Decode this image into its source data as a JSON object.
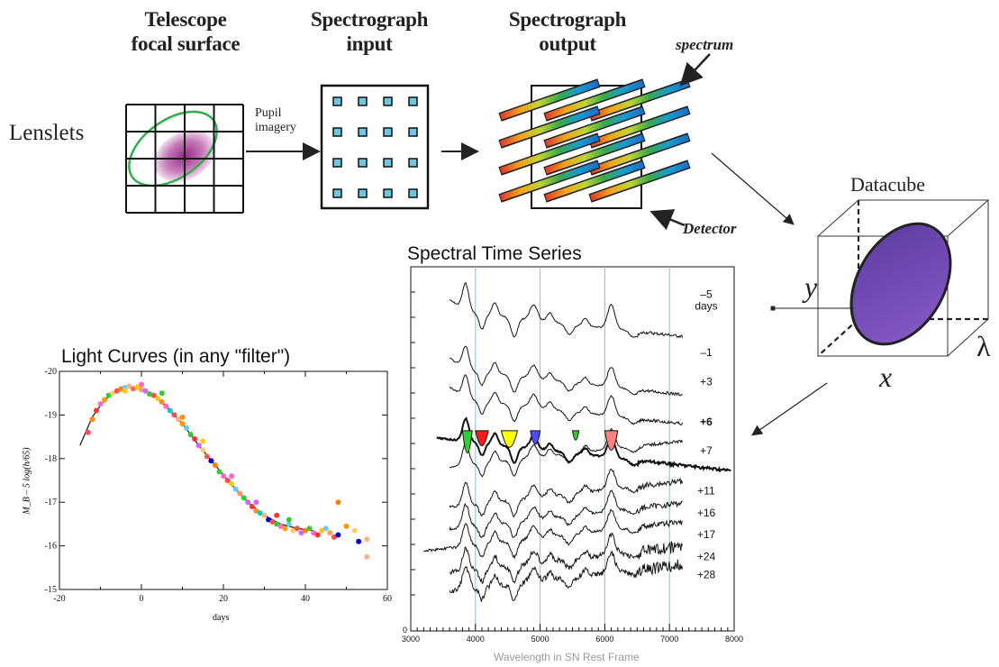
{
  "stages": {
    "telescope": "Telescope\nfocal surface",
    "spec_input": "Spectrograph\ninput",
    "spec_output": "Spectrograph\noutput"
  },
  "labels": {
    "lenslets": "Lenslets",
    "pupil": "Pupil\nimagery",
    "spectrum": "spectrum",
    "detector": "Detector",
    "datacube": "Datacube",
    "axis_y": "y",
    "axis_x": "x",
    "axis_lambda": "λ"
  },
  "chart_data": [
    {
      "type": "scatter",
      "title": "Light Curves (in any \"filter\")",
      "xlabel": "days",
      "ylabel": "M_B – 5 log(h/65)",
      "xlim": [
        -20,
        60
      ],
      "ylim": [
        -15,
        -20
      ],
      "xticks": [
        "-20",
        "0",
        "20",
        "40",
        "60"
      ],
      "yticks": [
        "-20",
        "-19",
        "-18",
        "-17",
        "-16",
        "-15"
      ],
      "template": [
        [
          -15,
          -18.3
        ],
        [
          -12,
          -18.95
        ],
        [
          -9,
          -19.35
        ],
        [
          -6,
          -19.55
        ],
        [
          -3,
          -19.65
        ],
        [
          0,
          -19.6
        ],
        [
          3,
          -19.45
        ],
        [
          6,
          -19.2
        ],
        [
          10,
          -18.8
        ],
        [
          14,
          -18.3
        ],
        [
          18,
          -17.85
        ],
        [
          22,
          -17.4
        ],
        [
          26,
          -17.0
        ],
        [
          30,
          -16.7
        ],
        [
          34,
          -16.5
        ],
        [
          38,
          -16.4
        ],
        [
          42,
          -16.35
        ]
      ],
      "points": [
        [
          -13,
          -18.6,
          "#ff5050"
        ],
        [
          -12,
          -18.9,
          "#ff8c1a"
        ],
        [
          -11,
          -19.1,
          "#ff3333"
        ],
        [
          -10,
          -19.25,
          "#ff66cc"
        ],
        [
          -9,
          -19.35,
          "#ff9900"
        ],
        [
          -8,
          -19.45,
          "#33cc33"
        ],
        [
          -7,
          -19.5,
          "#ffcc66"
        ],
        [
          -6,
          -19.55,
          "#ff4d4d"
        ],
        [
          -5,
          -19.6,
          "#ff8000"
        ],
        [
          -4,
          -19.63,
          "#66ccff"
        ],
        [
          -3,
          -19.66,
          "#ffb380"
        ],
        [
          -2,
          -19.6,
          "#ff6666"
        ],
        [
          -1,
          -19.64,
          "#ffcc00"
        ],
        [
          0,
          -19.58,
          "#ff9966"
        ],
        [
          1,
          -19.55,
          "#cc66ff"
        ],
        [
          2,
          -19.48,
          "#33cc33"
        ],
        [
          3,
          -19.45,
          "#ff5050"
        ],
        [
          4,
          -19.38,
          "#ffcc00"
        ],
        [
          5,
          -19.3,
          "#ff8c1a"
        ],
        [
          6,
          -19.2,
          "#ff66cc"
        ],
        [
          7,
          -19.1,
          "#00cccc"
        ],
        [
          8,
          -19.0,
          "#ff4d4d"
        ],
        [
          9,
          -18.9,
          "#ffb380"
        ],
        [
          10,
          -18.8,
          "#ff9900"
        ],
        [
          11,
          -18.7,
          "#66ccff"
        ],
        [
          12,
          -18.55,
          "#33cc33"
        ],
        [
          13,
          -18.45,
          "#ff3333"
        ],
        [
          14,
          -18.3,
          "#cc66ff"
        ],
        [
          15,
          -18.2,
          "#ffcc66"
        ],
        [
          16,
          -18.05,
          "#ff5050"
        ],
        [
          17,
          -17.95,
          "#0000cc"
        ],
        [
          18,
          -17.85,
          "#ff8000"
        ],
        [
          19,
          -17.7,
          "#33cc33"
        ],
        [
          20,
          -17.6,
          "#ff66cc"
        ],
        [
          21,
          -17.5,
          "#ff4d4d"
        ],
        [
          22,
          -17.42,
          "#ffcc00"
        ],
        [
          23,
          -17.3,
          "#66ccff"
        ],
        [
          24,
          -17.2,
          "#ff9966"
        ],
        [
          25,
          -17.1,
          "#33cc33"
        ],
        [
          26,
          -17.0,
          "#cc66ff"
        ],
        [
          27,
          -16.9,
          "#ff3333"
        ],
        [
          28,
          -16.8,
          "#ff8c1a"
        ],
        [
          29,
          -16.75,
          "#00cccc"
        ],
        [
          30,
          -16.7,
          "#ffb380"
        ],
        [
          31,
          -16.6,
          "#0000cc"
        ],
        [
          32,
          -16.55,
          "#ff5050"
        ],
        [
          33,
          -16.5,
          "#33cc33"
        ],
        [
          34,
          -16.45,
          "#ff66cc"
        ],
        [
          35,
          -16.4,
          "#ff9900"
        ],
        [
          36,
          -16.5,
          "#66ccff"
        ],
        [
          37,
          -16.35,
          "#ffcc66"
        ],
        [
          38,
          -16.4,
          "#ff4d4d"
        ],
        [
          39,
          -16.3,
          "#cc66ff"
        ],
        [
          40,
          -16.35,
          "#ff8000"
        ],
        [
          41,
          -16.4,
          "#33cc33"
        ],
        [
          42,
          -16.3,
          "#ff66cc"
        ],
        [
          43,
          -16.25,
          "#ff3333"
        ],
        [
          44,
          -16.35,
          "#ffcc00"
        ],
        [
          45,
          -16.4,
          "#66ccff"
        ],
        [
          46,
          -16.3,
          "#ff9966"
        ],
        [
          47,
          -16.2,
          "#ff5050"
        ],
        [
          48,
          -16.25,
          "#0000cc"
        ],
        [
          48,
          -17.0,
          "#ff8000"
        ],
        [
          50,
          -16.45,
          "#ff9900"
        ],
        [
          52,
          -16.35,
          "#ffcc66"
        ],
        [
          53,
          -16.1,
          "#0000cc"
        ],
        [
          55,
          -16.15,
          "#ffb380"
        ],
        [
          55,
          -15.75,
          "#ffb380"
        ],
        [
          36,
          -16.6,
          "#33cc33"
        ],
        [
          33,
          -16.7,
          "#ff3333"
        ],
        [
          28,
          -17.0,
          "#cc66ff"
        ],
        [
          22,
          -17.6,
          "#ff66cc"
        ],
        [
          15,
          -18.4,
          "#ffcc00"
        ],
        [
          10,
          -18.95,
          "#ff8c1a"
        ],
        [
          5,
          -19.5,
          "#33cc33"
        ],
        [
          0,
          -19.7,
          "#ff66cc"
        ],
        [
          -4,
          -19.55,
          "#ffcc00"
        ]
      ]
    },
    {
      "type": "line",
      "title": "Spectral Time Series",
      "xlabel": "Wavelength in SN Rest Frame",
      "xlim": [
        3000,
        8000
      ],
      "xticks": [
        "3000",
        "4000",
        "5000",
        "6000",
        "7000",
        "8000"
      ],
      "vlines": [
        4000,
        5000,
        6000,
        7000
      ],
      "epoch_labels": [
        "–5\ndays",
        "–1",
        "+3",
        "+6",
        "+7",
        "+11",
        "+16",
        "+17",
        "+24",
        "+28"
      ],
      "epoch_offsets": [
        0.12,
        0.28,
        0.36,
        0.47,
        0.55,
        0.66,
        0.72,
        0.78,
        0.84,
        0.89
      ],
      "bold_epoch": "+6",
      "zero_label": "0"
    }
  ]
}
